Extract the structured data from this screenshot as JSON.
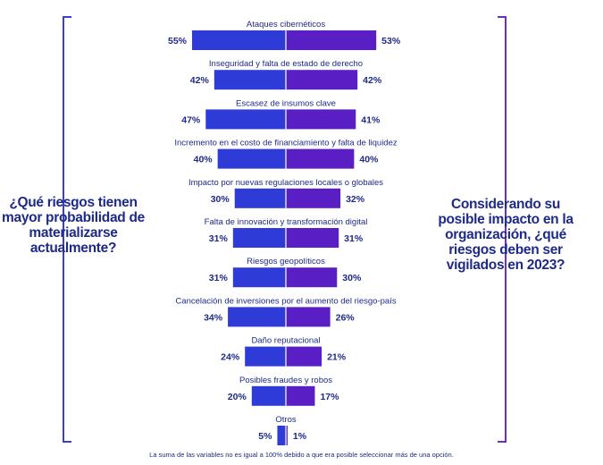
{
  "left_question": "¿Qué riesgos tienen mayor probabilidad de materializarse actualmente?",
  "right_question": "Considerando su posible impacto en la organización, ¿qué riesgos deben ser vigilados en 2023?",
  "footnote": "La suma de las variables no es igual a 100% debido a que era posible seleccionar más de una opción.",
  "colors": {
    "left_bar": "#2f3bd6",
    "right_bar": "#5a1fc4",
    "label_text": "#1e2a8a"
  },
  "chart_data": {
    "type": "bar",
    "orientation": "horizontal-diverging",
    "categories": [
      "Ataques cibernéticos",
      "Inseguridad y falta de estado de derecho",
      "Escasez de insumos clave",
      "Incremento en el costo de financiamiento y falta de liquidez",
      "Impacto por nuevas regulaciones locales o globales",
      "Falta de innovación y transformación digital",
      "Riesgos geopolíticos",
      "Cancelación de inversiones por el aumento del riesgo-país",
      "Daño reputacional",
      "Posibles fraudes y robos",
      "Otros"
    ],
    "series": [
      {
        "values": [
          55,
          42,
          47,
          40,
          30,
          31,
          31,
          34,
          24,
          20,
          5
        ],
        "labels": [
          "55%",
          "42%",
          "47%",
          "40%",
          "30%",
          "31%",
          "31%",
          "34%",
          "24%",
          "20%",
          "5%"
        ]
      },
      {
        "values": [
          53,
          42,
          41,
          40,
          32,
          31,
          30,
          26,
          21,
          17,
          1
        ],
        "labels": [
          "53%",
          "42%",
          "41%",
          "40%",
          "32%",
          "31%",
          "30%",
          "26%",
          "21%",
          "17%",
          "1%"
        ]
      }
    ],
    "xlim": [
      0,
      55
    ]
  }
}
